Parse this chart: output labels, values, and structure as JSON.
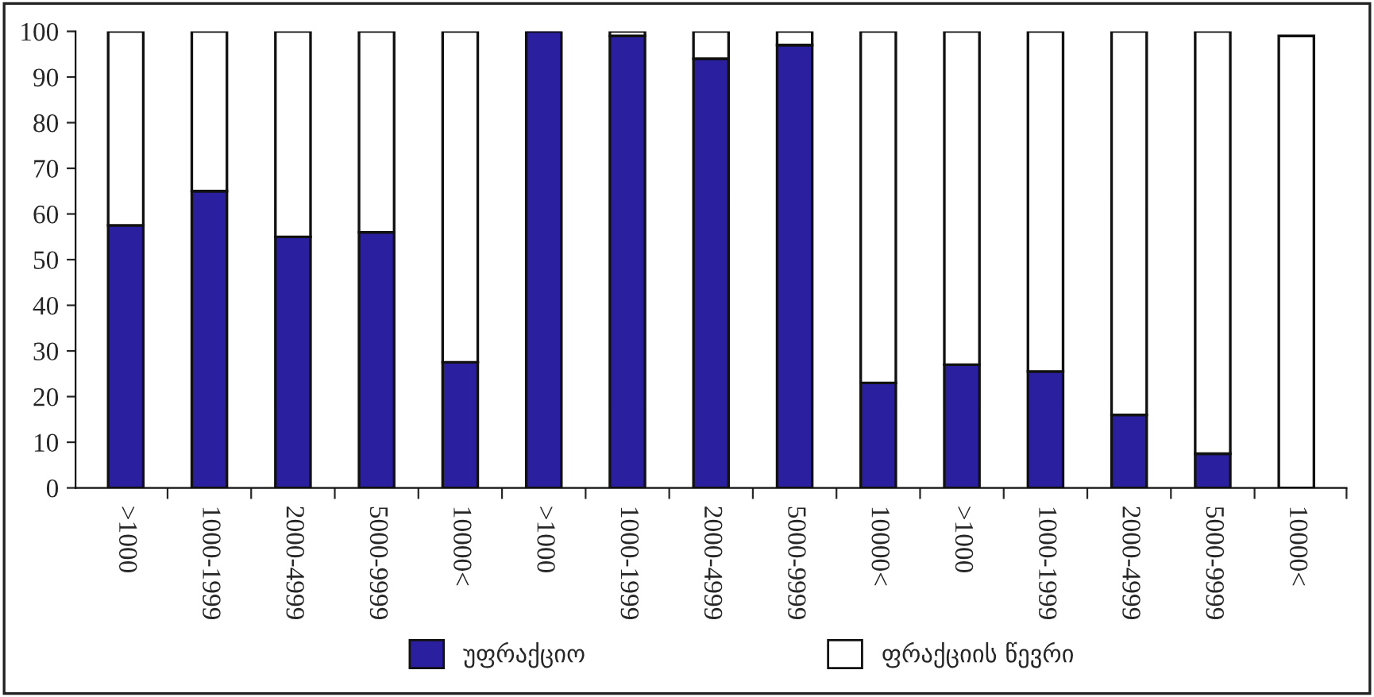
{
  "chart_data": {
    "type": "bar",
    "stacked": true,
    "categories": [
      ">1000",
      "1000-1999",
      "2000-4999",
      "5000-9999",
      "10000<",
      ">1000",
      "1000-1999",
      "2000-4999",
      "5000-9999",
      "10000<",
      ">1000",
      "1000-1999",
      "2000-4999",
      "5000-9999",
      "10000<"
    ],
    "series": [
      {
        "name": "უფრაქციო",
        "color": "#2a1f9e",
        "values": [
          57.5,
          65,
          55,
          56,
          27.5,
          100,
          99,
          94,
          97,
          23,
          27,
          25.5,
          16,
          7.5,
          null
        ]
      },
      {
        "name": "ფრაქციის წევრი",
        "color": "#ffffff",
        "values": [
          42.5,
          35,
          45,
          44,
          72.5,
          null,
          1,
          6,
          3,
          77,
          73,
          74.5,
          84,
          92.5,
          99
        ]
      }
    ],
    "ylim": [
      0,
      100
    ],
    "yticks": [
      0,
      10,
      20,
      30,
      40,
      50,
      60,
      70,
      80,
      90,
      100
    ],
    "legend": "bottom",
    "grid": false
  }
}
